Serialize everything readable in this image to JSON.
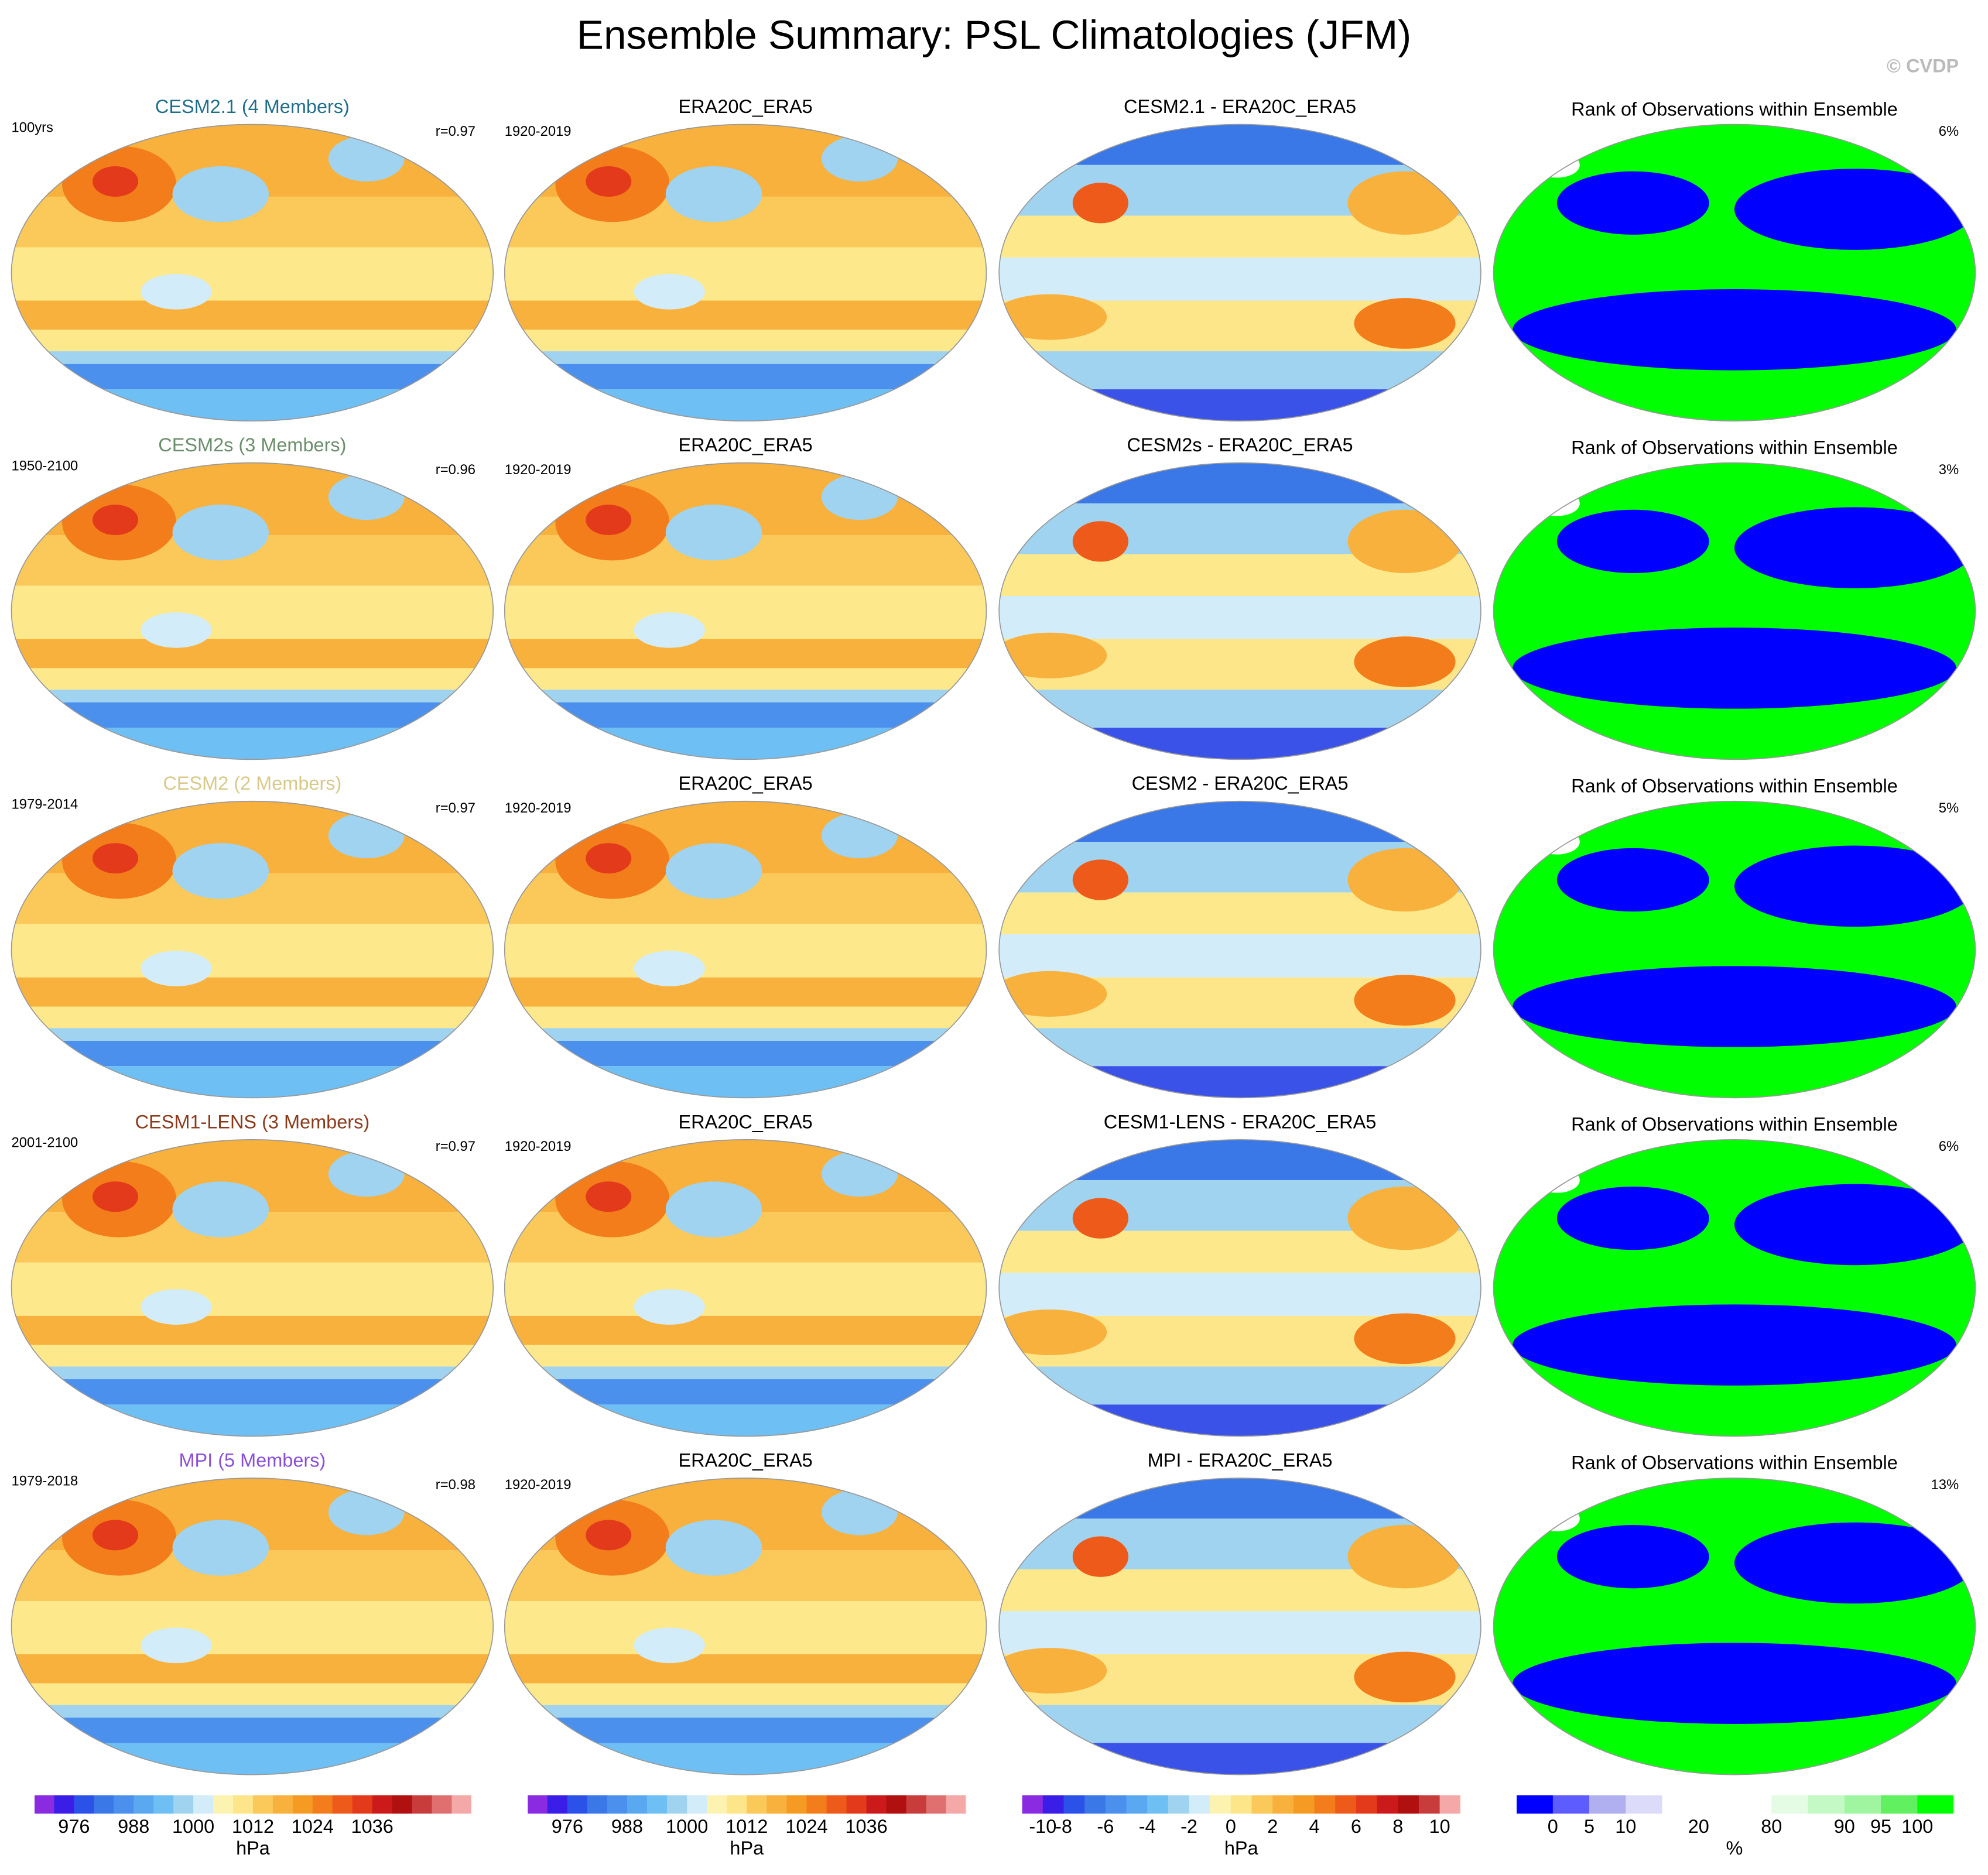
{
  "header": {
    "title": "Ensemble Summary: PSL Climatologies (JFM)",
    "watermark": "© CVDP"
  },
  "rows": [
    {
      "model": {
        "title": "CESM2.1 (4 Members)",
        "color": "#1f6f8b",
        "period": "100yrs",
        "r": "r=0.97"
      },
      "obs": {
        "title": "ERA20C_ERA5",
        "period": "1920-2019"
      },
      "diff": {
        "title": "CESM2.1 - ERA20C_ERA5"
      },
      "rank": {
        "title": "Rank of Observations within Ensemble",
        "pct": "6%"
      }
    },
    {
      "model": {
        "title": "CESM2s (3 Members)",
        "color": "#6b8e6b",
        "period": "1950-2100",
        "r": "r=0.96"
      },
      "obs": {
        "title": "ERA20C_ERA5",
        "period": "1920-2019"
      },
      "diff": {
        "title": "CESM2s - ERA20C_ERA5"
      },
      "rank": {
        "title": "Rank of Observations within Ensemble",
        "pct": "3%"
      }
    },
    {
      "model": {
        "title": "CESM2 (2 Members)",
        "color": "#d8c98a",
        "period": "1979-2014",
        "r": "r=0.97"
      },
      "obs": {
        "title": "ERA20C_ERA5",
        "period": "1920-2019"
      },
      "diff": {
        "title": "CESM2 - ERA20C_ERA5"
      },
      "rank": {
        "title": "Rank of Observations within Ensemble",
        "pct": "5%"
      }
    },
    {
      "model": {
        "title": "CESM1-LENS (3 Members)",
        "color": "#8b3a1a",
        "period": "2001-2100",
        "r": "r=0.97"
      },
      "obs": {
        "title": "ERA20C_ERA5",
        "period": "1920-2019"
      },
      "diff": {
        "title": "CESM1-LENS - ERA20C_ERA5"
      },
      "rank": {
        "title": "Rank of Observations within Ensemble",
        "pct": "6%"
      }
    },
    {
      "model": {
        "title": "MPI (5 Members)",
        "color": "#8a4fd8",
        "period": "1979-2018",
        "r": "r=0.98"
      },
      "obs": {
        "title": "ERA20C_ERA5",
        "period": "1920-2019"
      },
      "diff": {
        "title": "MPI - ERA20C_ERA5"
      },
      "rank": {
        "title": "Rank of Observations within Ensemble",
        "pct": "13%"
      }
    }
  ],
  "colorbars": [
    {
      "labels": [
        "976",
        "988",
        "1000",
        "1012",
        "1024",
        "1036"
      ],
      "unit": "hPa",
      "colors": [
        "#8a2be2",
        "#3a1ee8",
        "#2a52e8",
        "#3a78e8",
        "#4a90ec",
        "#5aa8f0",
        "#6ec0f4",
        "#9fd3f0",
        "#d2ecfa",
        "#fdf3b0",
        "#fde68a",
        "#fbc85a",
        "#f8b13c",
        "#f59a23",
        "#f27d1a",
        "#ee5a1a",
        "#e23a1a",
        "#cc1a1a",
        "#b01010",
        "#c83c3c",
        "#e07070",
        "#f4a8a8"
      ]
    },
    {
      "labels": [
        "976",
        "988",
        "1000",
        "1012",
        "1024",
        "1036"
      ],
      "unit": "hPa",
      "colors": [
        "#8a2be2",
        "#3a1ee8",
        "#2a52e8",
        "#3a78e8",
        "#4a90ec",
        "#5aa8f0",
        "#6ec0f4",
        "#9fd3f0",
        "#d2ecfa",
        "#fdf3b0",
        "#fde68a",
        "#fbc85a",
        "#f8b13c",
        "#f59a23",
        "#f27d1a",
        "#ee5a1a",
        "#e23a1a",
        "#cc1a1a",
        "#b01010",
        "#c83c3c",
        "#e07070",
        "#f4a8a8"
      ]
    },
    {
      "labels": [
        "-10",
        "-8",
        "-6",
        "-4",
        "-2",
        "0",
        "2",
        "4",
        "6",
        "8",
        "10"
      ],
      "unit": "hPa",
      "colors": [
        "#8a2be2",
        "#3a1ee8",
        "#2a52e8",
        "#3a78e8",
        "#4a90ec",
        "#5aa8f0",
        "#6ec0f4",
        "#9fd3f0",
        "#d2ecfa",
        "#fdf3b0",
        "#fde68a",
        "#fbc85a",
        "#f8b13c",
        "#f59a23",
        "#f27d1a",
        "#ee5a1a",
        "#e23a1a",
        "#cc1a1a",
        "#b01010",
        "#c83c3c",
        "#f4a8a8"
      ]
    },
    {
      "labels": [
        "0",
        "5",
        "10",
        "20",
        "80",
        "90",
        "95",
        "100"
      ],
      "unit": "%",
      "colors": [
        "#0000ff",
        "#5c5cff",
        "#b0b0f0",
        "#dcdcfa",
        "#ffffff",
        "#ffffff",
        "#ffffff",
        "#e4fbe4",
        "#c4f8c4",
        "#a0f5a0",
        "#60f060",
        "#00ff00"
      ]
    }
  ]
}
